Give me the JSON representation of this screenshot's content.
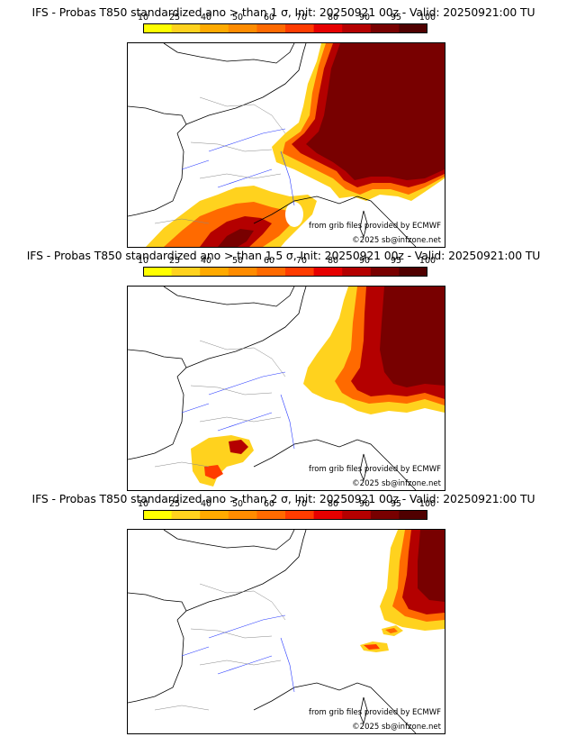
{
  "colorbar": {
    "labels": [
      "10",
      "25",
      "40",
      "50",
      "60",
      "70",
      "80",
      "90",
      "95",
      "100"
    ],
    "colors": [
      "#ffff00",
      "#ffd21e",
      "#ffaa00",
      "#ff8c00",
      "#ff6a00",
      "#ff3c00",
      "#e60000",
      "#b40000",
      "#780000",
      "#500000"
    ]
  },
  "panels": [
    {
      "title": "IFS - Probas T850  standardized ano > than 1 σ, Init: 20250921 00z - Valid: 20250921:00 TU",
      "credit_source": "from grib files provided by ECMWF",
      "credit_copyright": "©2025 sb@infzone.net"
    },
    {
      "title": "IFS - Probas T850  standardized ano > than 1.5 σ, Init: 20250921 00z - Valid: 20250921:00 TU",
      "credit_source": "from grib files provided by ECMWF",
      "credit_copyright": "©2025 sb@infzone.net"
    },
    {
      "title": "IFS - Probas T850  standardized ano > than 2 σ, Init: 20250921 00z - Valid: 20250921:00 TU",
      "credit_source": "from grib files provided by ECMWF",
      "credit_copyright": "©2025 sb@infzone.net"
    }
  ]
}
